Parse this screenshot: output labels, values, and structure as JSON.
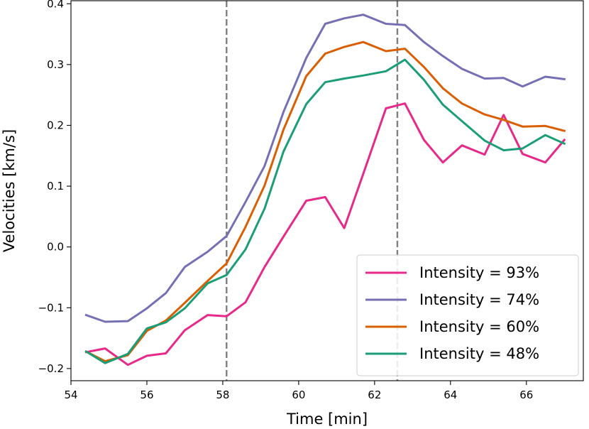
{
  "chart_data": {
    "type": "line",
    "xlabel": "Time [min]",
    "ylabel": "Velocities [km/s]",
    "xlim": [
      54.0,
      67.5
    ],
    "ylim": [
      -0.22,
      0.405
    ],
    "xticks": [
      54,
      56,
      58,
      60,
      62,
      64,
      66
    ],
    "xtick_labels": [
      "54",
      "56",
      "58",
      "60",
      "62",
      "64",
      "66"
    ],
    "yticks": [
      -0.2,
      -0.1,
      0.0,
      0.1,
      0.2,
      0.3,
      0.4
    ],
    "ytick_labels": [
      "−0.2",
      "−0.1",
      "0.0",
      "0.1",
      "0.2",
      "0.3",
      "0.4"
    ],
    "vlines": [
      58.1,
      62.6
    ],
    "legend_position": "bottom-right",
    "x": [
      54.4,
      54.9,
      55.5,
      56.0,
      56.5,
      57.0,
      57.6,
      58.1,
      58.6,
      59.1,
      59.6,
      60.2,
      60.7,
      61.2,
      61.7,
      62.3,
      62.8,
      63.3,
      63.8,
      64.3,
      64.9,
      65.4,
      65.9,
      66.5,
      67.0
    ],
    "series": [
      {
        "name": "Intensity = 93%",
        "color": "#e7298a",
        "values": [
          -0.173,
          -0.167,
          -0.194,
          -0.179,
          -0.175,
          -0.137,
          -0.112,
          -0.114,
          -0.091,
          -0.033,
          0.017,
          0.076,
          0.082,
          0.031,
          0.12,
          0.228,
          0.236,
          0.176,
          0.139,
          0.167,
          0.152,
          0.217,
          0.153,
          0.139,
          0.176
        ]
      },
      {
        "name": "Intensity = 74%",
        "color": "#7570b3",
        "values": [
          -0.112,
          -0.123,
          -0.122,
          -0.101,
          -0.076,
          -0.033,
          -0.008,
          0.018,
          0.074,
          0.133,
          0.222,
          0.311,
          0.367,
          0.376,
          0.382,
          0.367,
          0.365,
          0.337,
          0.314,
          0.293,
          0.277,
          0.278,
          0.264,
          0.28,
          0.276
        ]
      },
      {
        "name": "Intensity = 60%",
        "color": "#d95f02",
        "values": [
          -0.172,
          -0.188,
          -0.178,
          -0.138,
          -0.121,
          -0.092,
          -0.056,
          -0.027,
          0.033,
          0.101,
          0.193,
          0.281,
          0.318,
          0.329,
          0.337,
          0.322,
          0.326,
          0.296,
          0.261,
          0.236,
          0.218,
          0.209,
          0.198,
          0.199,
          0.191
        ]
      },
      {
        "name": "Intensity = 48%",
        "color": "#1b9e77",
        "values": [
          -0.172,
          -0.191,
          -0.176,
          -0.134,
          -0.124,
          -0.101,
          -0.06,
          -0.046,
          -0.004,
          0.063,
          0.157,
          0.235,
          0.271,
          0.277,
          0.282,
          0.289,
          0.308,
          0.275,
          0.234,
          0.207,
          0.175,
          0.159,
          0.162,
          0.184,
          0.17
        ]
      }
    ]
  }
}
